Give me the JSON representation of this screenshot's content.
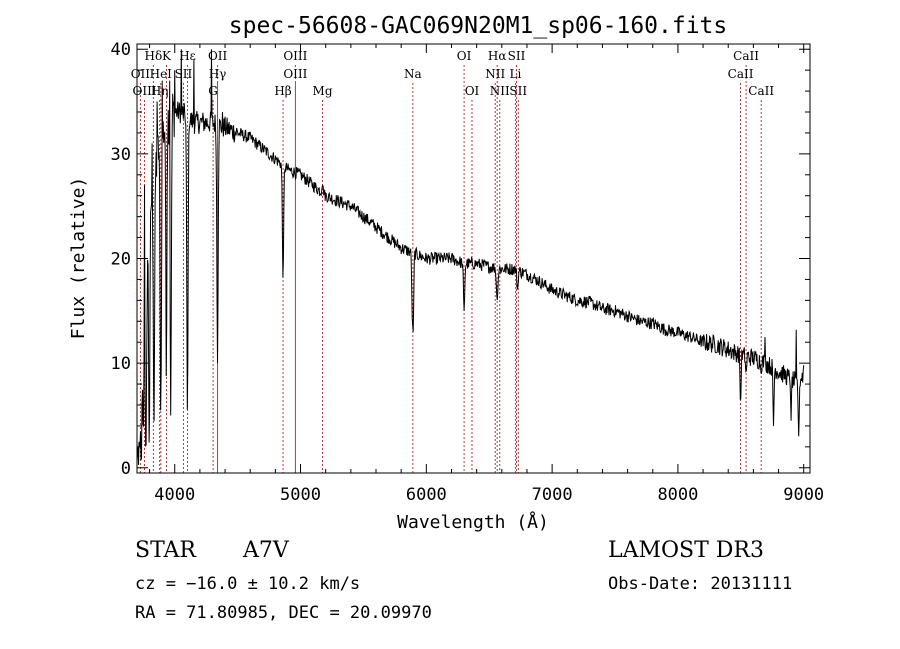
{
  "chart_data": {
    "type": "line",
    "title": "spec-56608-GAC069N20M1_sp06-160.fits",
    "xlabel": "Wavelength (Å)",
    "ylabel": "Flux (relative)",
    "xlim": [
      3700,
      9050
    ],
    "ylim": [
      -0.5,
      40.5
    ],
    "xticks": [
      4000,
      5000,
      6000,
      7000,
      8000,
      9000
    ],
    "yticks": [
      0,
      10,
      20,
      30,
      40
    ],
    "grid": false,
    "line_color": "#000000",
    "marker_color": "#b22222",
    "line_markers": [
      {
        "label": "Hδ",
        "x": 3830,
        "row": 0
      },
      {
        "label": "K",
        "x": 3934,
        "row": 0
      },
      {
        "label": "Hε",
        "x": 4102,
        "row": 0
      },
      {
        "label": "OII",
        "x": 4341,
        "row": 0
      },
      {
        "label": "OIII",
        "x": 4959,
        "row": 0
      },
      {
        "label": "OI",
        "x": 6300,
        "row": 0
      },
      {
        "label": "Hα",
        "x": 6563,
        "row": 0
      },
      {
        "label": "SII",
        "x": 6717,
        "row": 0
      },
      {
        "label": "CaII",
        "x": 8542,
        "row": 0
      },
      {
        "label": "OII",
        "x": 3727,
        "row": 1
      },
      {
        "label": "HeI",
        "x": 3889,
        "row": 1
      },
      {
        "label": "SII",
        "x": 4069,
        "row": 1
      },
      {
        "label": "Hγ",
        "x": 4340,
        "row": 1
      },
      {
        "label": "OIII",
        "x": 4959,
        "row": 1
      },
      {
        "label": "Na",
        "x": 5893,
        "row": 1
      },
      {
        "label": "NII",
        "x": 6548,
        "row": 1
      },
      {
        "label": "Li",
        "x": 6708,
        "row": 1
      },
      {
        "label": "CaII",
        "x": 8498,
        "row": 1
      },
      {
        "label": "OIII",
        "x": 3760,
        "row": 2
      },
      {
        "label": "Hη",
        "x": 3880,
        "row": 2
      },
      {
        "label": "G",
        "x": 4305,
        "row": 2
      },
      {
        "label": "Hβ",
        "x": 4861,
        "row": 2
      },
      {
        "label": "Mg",
        "x": 5175,
        "row": 2
      },
      {
        "label": "OI",
        "x": 6363,
        "row": 2
      },
      {
        "label": "NII",
        "x": 6584,
        "row": 2
      },
      {
        "label": "SII",
        "x": 6731,
        "row": 2
      },
      {
        "label": "CaII",
        "x": 8662,
        "row": 2
      }
    ],
    "continuum": [
      [
        3700,
        0
      ],
      [
        3710,
        8
      ],
      [
        3730,
        14
      ],
      [
        3760,
        19
      ],
      [
        3800,
        24
      ],
      [
        3840,
        28
      ],
      [
        3880,
        31
      ],
      [
        3930,
        33
      ],
      [
        3980,
        34
      ],
      [
        4050,
        34
      ],
      [
        4150,
        33
      ],
      [
        4300,
        33
      ],
      [
        4400,
        32.5
      ],
      [
        4500,
        32
      ],
      [
        4600,
        31.5
      ],
      [
        4700,
        30.5
      ],
      [
        4800,
        29.5
      ],
      [
        4900,
        28.5
      ],
      [
        5000,
        28
      ],
      [
        5100,
        27
      ],
      [
        5200,
        26
      ],
      [
        5300,
        25.5
      ],
      [
        5400,
        25
      ],
      [
        5500,
        24
      ],
      [
        5600,
        23
      ],
      [
        5700,
        22
      ],
      [
        5800,
        21
      ],
      [
        5900,
        20.5
      ],
      [
        6000,
        20
      ],
      [
        6100,
        20
      ],
      [
        6200,
        20
      ],
      [
        6300,
        19.5
      ],
      [
        6400,
        19.5
      ],
      [
        6500,
        19.2
      ],
      [
        6600,
        19
      ],
      [
        6700,
        19
      ],
      [
        6800,
        18.5
      ],
      [
        6900,
        17.8
      ],
      [
        7000,
        17
      ],
      [
        7100,
        16.5
      ],
      [
        7200,
        16
      ],
      [
        7300,
        15.8
      ],
      [
        7400,
        15.2
      ],
      [
        7500,
        15
      ],
      [
        7600,
        14.5
      ],
      [
        7700,
        14
      ],
      [
        7800,
        13.8
      ],
      [
        7900,
        13.2
      ],
      [
        8000,
        12.9
      ],
      [
        8100,
        12.5
      ],
      [
        8200,
        12
      ],
      [
        8300,
        11.8
      ],
      [
        8400,
        11.3
      ],
      [
        8500,
        10.8
      ],
      [
        8600,
        10.5
      ],
      [
        8700,
        10
      ],
      [
        8800,
        9.2
      ],
      [
        8900,
        8.5
      ],
      [
        8950,
        8
      ],
      [
        9000,
        9
      ]
    ],
    "absorption_features": [
      [
        3712,
        0,
        5
      ],
      [
        3722,
        2,
        5
      ],
      [
        3734,
        0,
        6
      ],
      [
        3750,
        3,
        5
      ],
      [
        3770,
        1,
        6
      ],
      [
        3797,
        2,
        5
      ],
      [
        3835,
        4,
        5
      ],
      [
        3889,
        5,
        5
      ],
      [
        3933,
        8,
        4
      ],
      [
        3968,
        5,
        5
      ],
      [
        4101,
        5,
        5
      ],
      [
        4340,
        10,
        5
      ],
      [
        4861,
        18,
        5
      ],
      [
        5175,
        27,
        6
      ],
      [
        5890,
        14,
        5
      ],
      [
        5896,
        13,
        4
      ],
      [
        6300,
        15,
        5
      ],
      [
        6563,
        16,
        6
      ],
      [
        6725,
        17,
        5
      ],
      [
        8498,
        6,
        4
      ],
      [
        8542,
        9,
        4
      ],
      [
        8662,
        9,
        4
      ],
      [
        8760,
        4,
        4
      ],
      [
        8900,
        4.5,
        3
      ],
      [
        8960,
        3,
        4
      ]
    ],
    "emission_spikes": [
      [
        3760,
        27
      ],
      [
        3820,
        31
      ],
      [
        3860,
        35
      ],
      [
        3900,
        37
      ],
      [
        3960,
        37
      ],
      [
        4000,
        38
      ],
      [
        4050,
        40
      ],
      [
        4150,
        39
      ],
      [
        4290,
        40
      ],
      [
        4380,
        34
      ],
      [
        8690,
        12.5
      ],
      [
        8940,
        13.2
      ],
      [
        9000,
        9.8
      ]
    ]
  },
  "info": {
    "object_type": "STAR",
    "subclass": "A7V",
    "redshift_line": "cz = −16.0 ± 10.2 km/s",
    "coords_line": "RA =  71.80985, DEC =  20.09970",
    "survey": "LAMOST DR3",
    "obs_date_line": "Obs-Date: 20131111"
  }
}
